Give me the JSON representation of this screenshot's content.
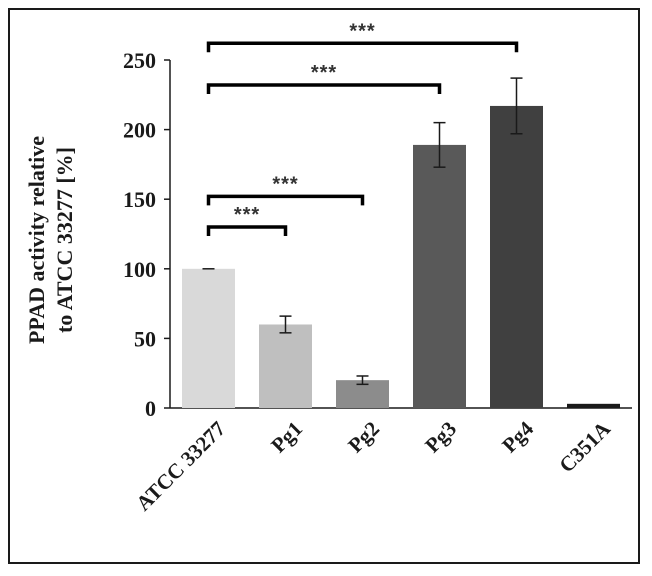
{
  "chart_data": {
    "type": "bar",
    "ylabel": [
      "PPAD activity relative",
      "to ATCC 33277 [%]"
    ],
    "ylim": [
      0,
      250
    ],
    "yticks": [
      0,
      50,
      100,
      150,
      200,
      250
    ],
    "categories": [
      "ATCC 33277",
      "Pg1",
      "Pg2",
      "Pg3",
      "Pg4",
      "C351A"
    ],
    "values": [
      100,
      60,
      20,
      189,
      217,
      3
    ],
    "errors": [
      0,
      6,
      3,
      16,
      20,
      0
    ],
    "colors": [
      "#d9d9d9",
      "#bfbfbf",
      "#8c8c8c",
      "#595959",
      "#404040",
      "#1a1a1a"
    ],
    "significance": [
      {
        "from": 0,
        "to": 1,
        "label": "***",
        "y": 130
      },
      {
        "from": 0,
        "to": 2,
        "label": "***",
        "y": 152
      },
      {
        "from": 0,
        "to": 3,
        "label": "***",
        "y": 232
      },
      {
        "from": 0,
        "to": 4,
        "label": "***",
        "y": 262
      }
    ]
  }
}
